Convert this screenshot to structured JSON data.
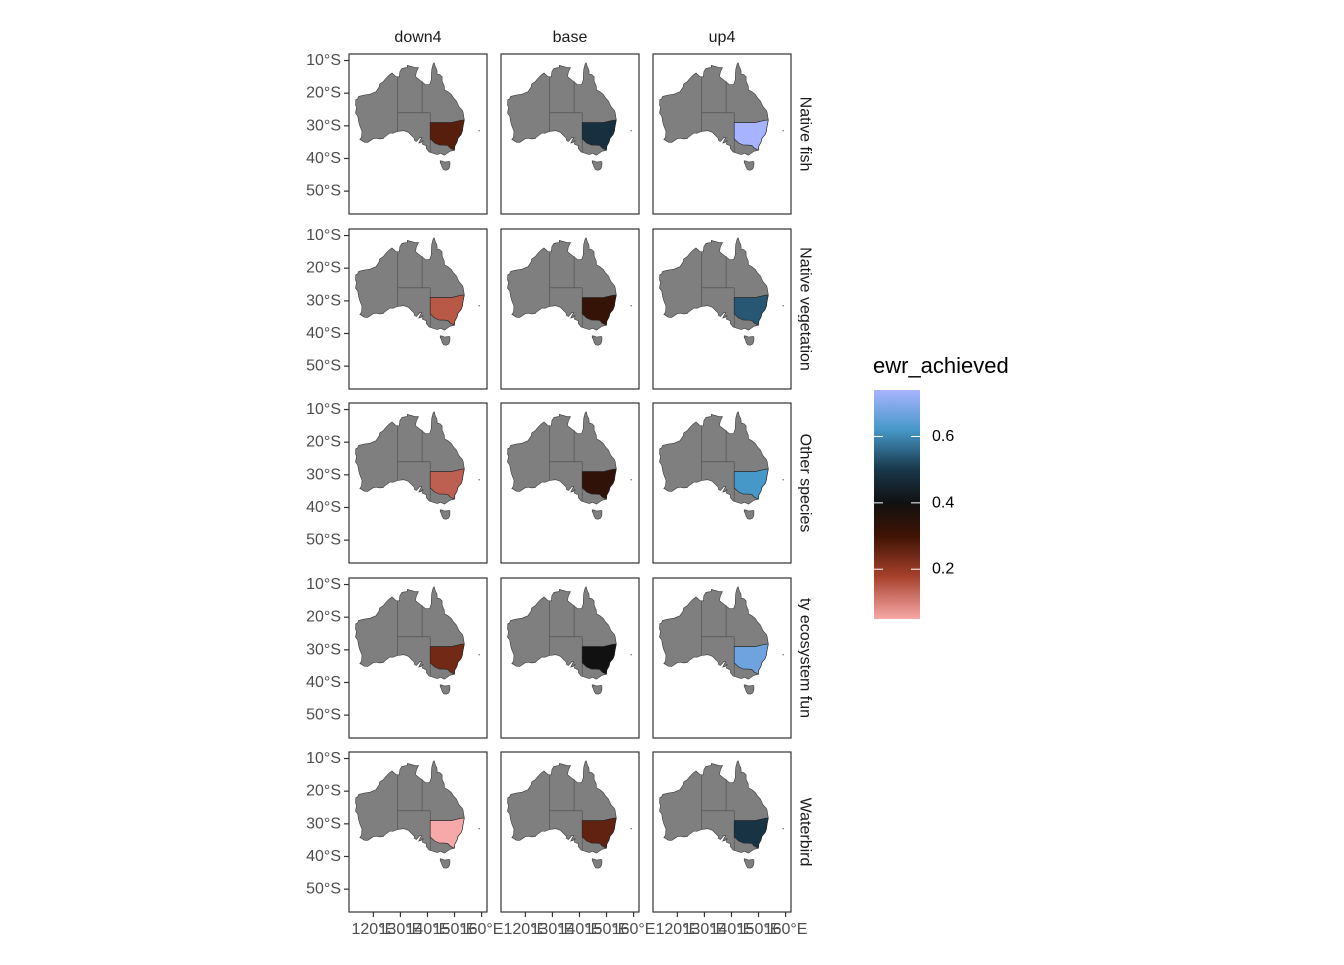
{
  "chart_data": {
    "type": "heatmap",
    "subtype": "faceted choropleth map",
    "facet_columns": [
      "down4",
      "base",
      "up4"
    ],
    "facet_rows": [
      "Native fish",
      "Native vegetation",
      "Other species",
      "ty ecosystem fun",
      "Waterbird"
    ],
    "x_ticks": [
      "120°E",
      "130°E",
      "140°E",
      "150°E",
      "160°E"
    ],
    "x_tick_values": [
      120,
      130,
      140,
      150,
      160
    ],
    "y_ticks": [
      "10°S",
      "20°S",
      "30°S",
      "40°S",
      "50°S"
    ],
    "y_tick_values": [
      -10,
      -20,
      -30,
      -40,
      -50
    ],
    "xlim": [
      111,
      162
    ],
    "ylim": [
      -57,
      -8
    ],
    "base_fill": "#7f7f7f",
    "highlight_region": "New South Wales",
    "legend": {
      "title": "ewr_achieved",
      "ticks": [
        "0.2",
        "0.4",
        "0.6"
      ],
      "tick_values": [
        0.2,
        0.4,
        0.6
      ],
      "range": [
        0.05,
        0.74
      ],
      "colors": [
        {
          "value": 0.05,
          "color": "#f7a8a8"
        },
        {
          "value": 0.18,
          "color": "#a5402a"
        },
        {
          "value": 0.3,
          "color": "#3f1304"
        },
        {
          "value": 0.4,
          "color": "#111111"
        },
        {
          "value": 0.5,
          "color": "#19374a"
        },
        {
          "value": 0.62,
          "color": "#4598c8"
        },
        {
          "value": 0.74,
          "color": "#a8b3ff"
        }
      ],
      "placement": "right"
    },
    "values": [
      [
        0.27,
        0.48,
        0.74
      ],
      [
        0.15,
        0.32,
        0.54
      ],
      [
        0.14,
        0.33,
        0.62
      ],
      [
        0.24,
        0.4,
        0.67
      ],
      [
        0.05,
        0.26,
        0.49
      ]
    ]
  }
}
